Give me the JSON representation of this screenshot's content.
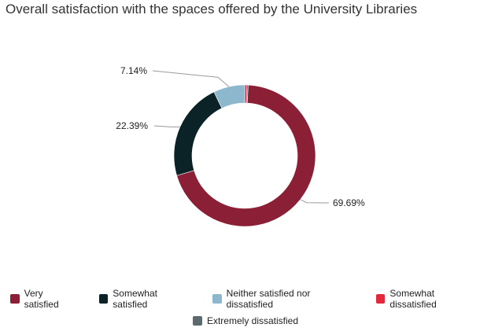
{
  "chart_data": {
    "type": "pie",
    "title": "Overall satisfaction with the spaces offered by the University Libraries",
    "donut": true,
    "legend_position": "bottom",
    "series": [
      {
        "name": "Very satisfied",
        "value": 69.69,
        "label": "69.69%",
        "color": "#8a1f35"
      },
      {
        "name": "Somewhat satisfied",
        "value": 22.39,
        "label": "22.39%",
        "color": "#0b2226"
      },
      {
        "name": "Neither satisfied nor dissatisfied",
        "value": 7.14,
        "label": "7.14%",
        "color": "#8db7cc"
      },
      {
        "name": "Somewhat dissatisfied",
        "value": 0.5,
        "label": "",
        "color": "#e2283a"
      },
      {
        "name": "Extremely dissatisfied",
        "value": 0.28,
        "label": "",
        "color": "#5c6a70"
      }
    ]
  }
}
